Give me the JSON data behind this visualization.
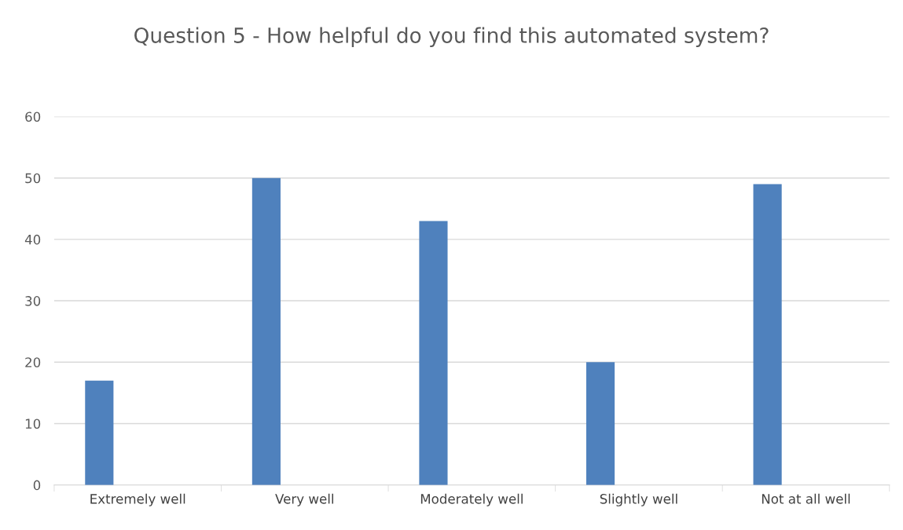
{
  "chart_data": {
    "type": "bar",
    "title": "Question 5 - How helpful do you find this automated system?",
    "categories": [
      "Extremely well",
      "Very well",
      "Moderately well",
      "Slightly well",
      "Not at all well"
    ],
    "values": [
      17,
      50,
      43,
      20,
      49
    ],
    "color": "#4f81bd",
    "ylim": [
      0,
      60
    ],
    "yticks": [
      0,
      10,
      20,
      30,
      40,
      50,
      60
    ],
    "grid": "y"
  }
}
